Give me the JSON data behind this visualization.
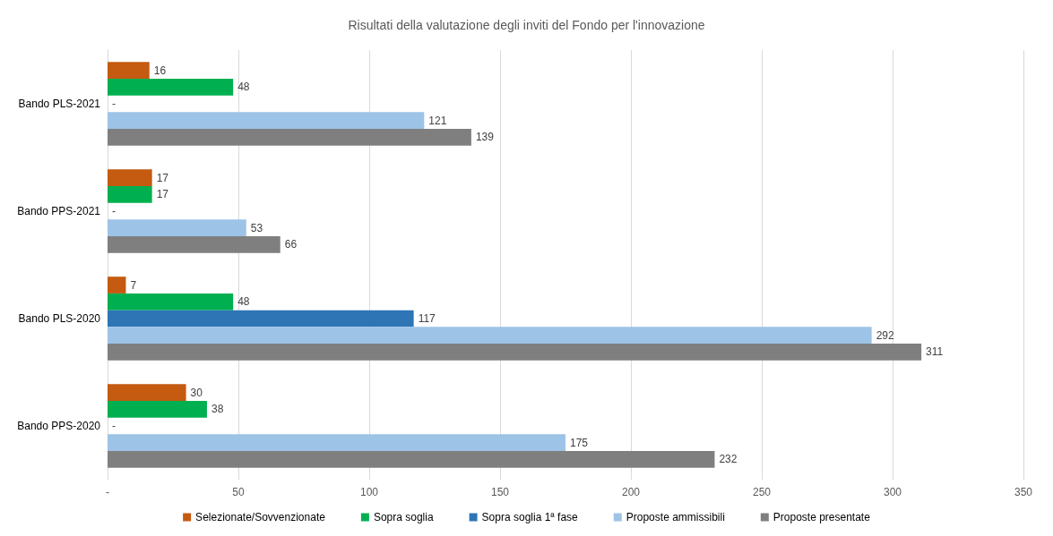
{
  "chart_data": {
    "type": "bar",
    "orientation": "horizontal",
    "title": "Risultati della valutazione degli inviti del Fondo per l'innovazione",
    "categories": [
      "Bando PLS-2021",
      "Bando PPS-2021",
      "Bando PLS-2020",
      "Bando PPS-2020"
    ],
    "series": [
      {
        "name": "Selezionate/Sovvenzionate",
        "color": "#c55a11",
        "values": [
          16,
          17,
          7,
          30
        ],
        "value_labels": [
          "16",
          "17",
          "7",
          "30"
        ]
      },
      {
        "name": "Sopra soglia",
        "color": "#00b050",
        "values": [
          48,
          17,
          48,
          38
        ],
        "value_labels": [
          "48",
          "17",
          "48",
          "38"
        ]
      },
      {
        "name": "Sopra soglia 1ª fase",
        "color": "#2e75b6",
        "values": [
          0,
          0,
          117,
          0
        ],
        "value_labels": [
          "-",
          "-",
          "117",
          "-"
        ]
      },
      {
        "name": "Proposte ammissibili",
        "color": "#9dc3e6",
        "values": [
          121,
          53,
          292,
          175
        ],
        "value_labels": [
          "121",
          "53",
          "292",
          "175"
        ]
      },
      {
        "name": "Proposte presentate",
        "color": "#7f7f7f",
        "values": [
          139,
          66,
          311,
          232
        ],
        "value_labels": [
          "139",
          "66",
          "311",
          "232"
        ]
      }
    ],
    "xlim": [
      0,
      350
    ],
    "xticks": [
      {
        "value": 0,
        "label": "-"
      },
      50,
      100,
      150,
      200,
      250,
      300,
      350
    ],
    "grid": "x",
    "legend": "bottom"
  }
}
